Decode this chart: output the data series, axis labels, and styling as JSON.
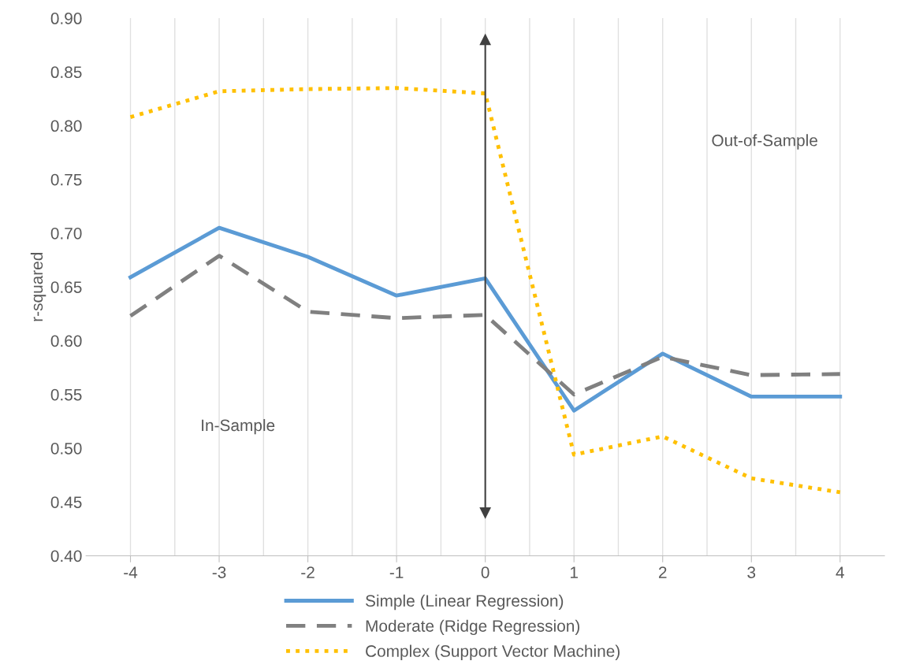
{
  "chart_data": {
    "type": "line",
    "ylabel": "r-squared",
    "categories": [
      "-4",
      "-3",
      "-2",
      "-1",
      "0",
      "1",
      "2",
      "3",
      "4"
    ],
    "series": [
      {
        "name": "Simple (Linear Regression)",
        "color": "#5b9bd5",
        "line_style": "solid",
        "values": [
          0.659,
          0.705,
          0.678,
          0.642,
          0.658,
          0.535,
          0.588,
          0.548,
          0.548
        ]
      },
      {
        "name": "Moderate (Ridge Regression)",
        "color": "#808080",
        "line_style": "dashed",
        "values": [
          0.623,
          0.679,
          0.627,
          0.621,
          0.624,
          0.55,
          0.585,
          0.568,
          0.569
        ]
      },
      {
        "name": "Complex (Support Vector Machine)",
        "color": "#ffc000",
        "line_style": "dotted",
        "values": [
          0.808,
          0.832,
          0.834,
          0.835,
          0.83,
          0.494,
          0.511,
          0.472,
          0.459
        ]
      }
    ],
    "ylim": [
      0.4,
      0.9
    ],
    "yticks": [
      {
        "value": 0.4,
        "label": "0.40"
      },
      {
        "value": 0.45,
        "label": "0.45"
      },
      {
        "value": 0.5,
        "label": "0.50"
      },
      {
        "value": 0.55,
        "label": "0.55"
      },
      {
        "value": 0.6,
        "label": "0.60"
      },
      {
        "value": 0.65,
        "label": "0.65"
      },
      {
        "value": 0.7,
        "label": "0.70"
      },
      {
        "value": 0.75,
        "label": "0.75"
      },
      {
        "value": 0.8,
        "label": "0.80"
      },
      {
        "value": 0.85,
        "label": "0.85"
      },
      {
        "value": 0.9,
        "label": "0.90"
      }
    ],
    "ref_lines": [
      {
        "axis": "x",
        "value": "0",
        "color": "#404040"
      }
    ],
    "annotations": [
      "In-Sample",
      "Out-of-Sample"
    ],
    "grid": "x",
    "legend": "bottom",
    "marker": "none"
  }
}
